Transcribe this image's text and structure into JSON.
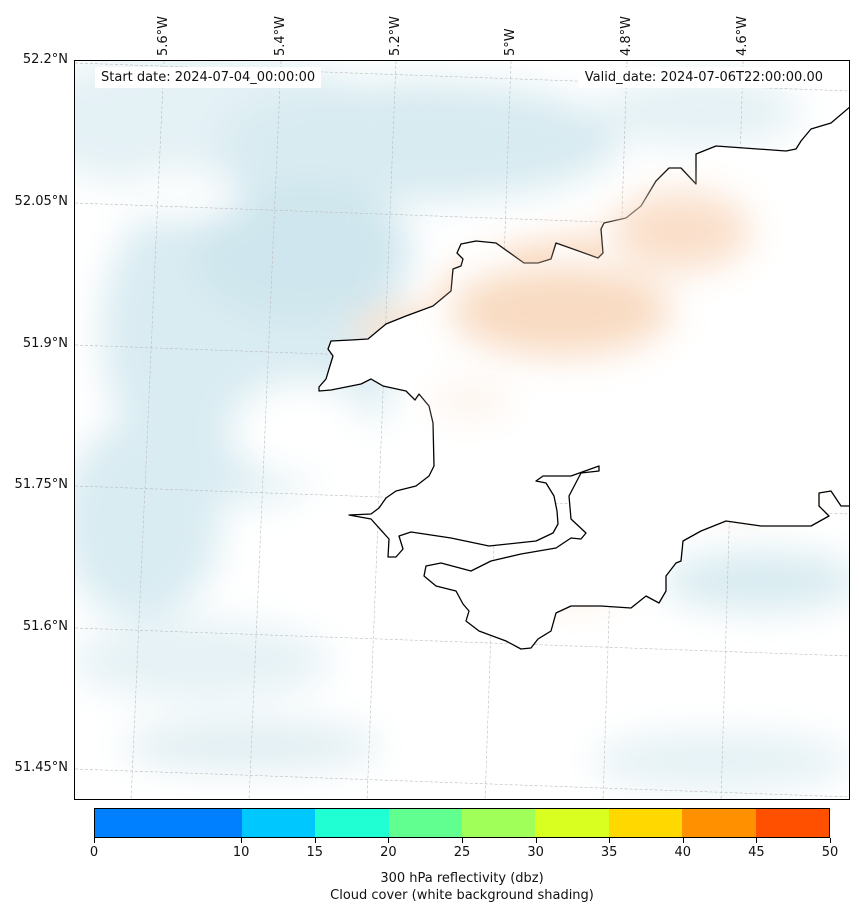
{
  "header": {
    "start_date": "Start date: 2024-07-04_00:00:00",
    "valid_date": "Valid_date: 2024-07-06T22:00:00.00"
  },
  "lon_labels": [
    "5.6°W",
    "5.4°W",
    "5.2°W",
    "5°W",
    "4.8°W",
    "4.6°W"
  ],
  "lat_labels": [
    "52.2°N",
    "52.05°N",
    "51.9°N",
    "51.75°N",
    "51.6°N",
    "51.45°N"
  ],
  "colorbar": {
    "ticks": [
      "0",
      "10",
      "15",
      "20",
      "25",
      "30",
      "35",
      "40",
      "45",
      "50"
    ],
    "colors": [
      "#0080ff",
      "#00c8ff",
      "#20ffd4",
      "#60ff90",
      "#a0ff58",
      "#d8ff20",
      "#ffd800",
      "#ff9000",
      "#ff5000"
    ],
    "label": "300 hPa reflectivity (dbz)",
    "sublabel": "Cloud cover (white background shading)"
  }
}
